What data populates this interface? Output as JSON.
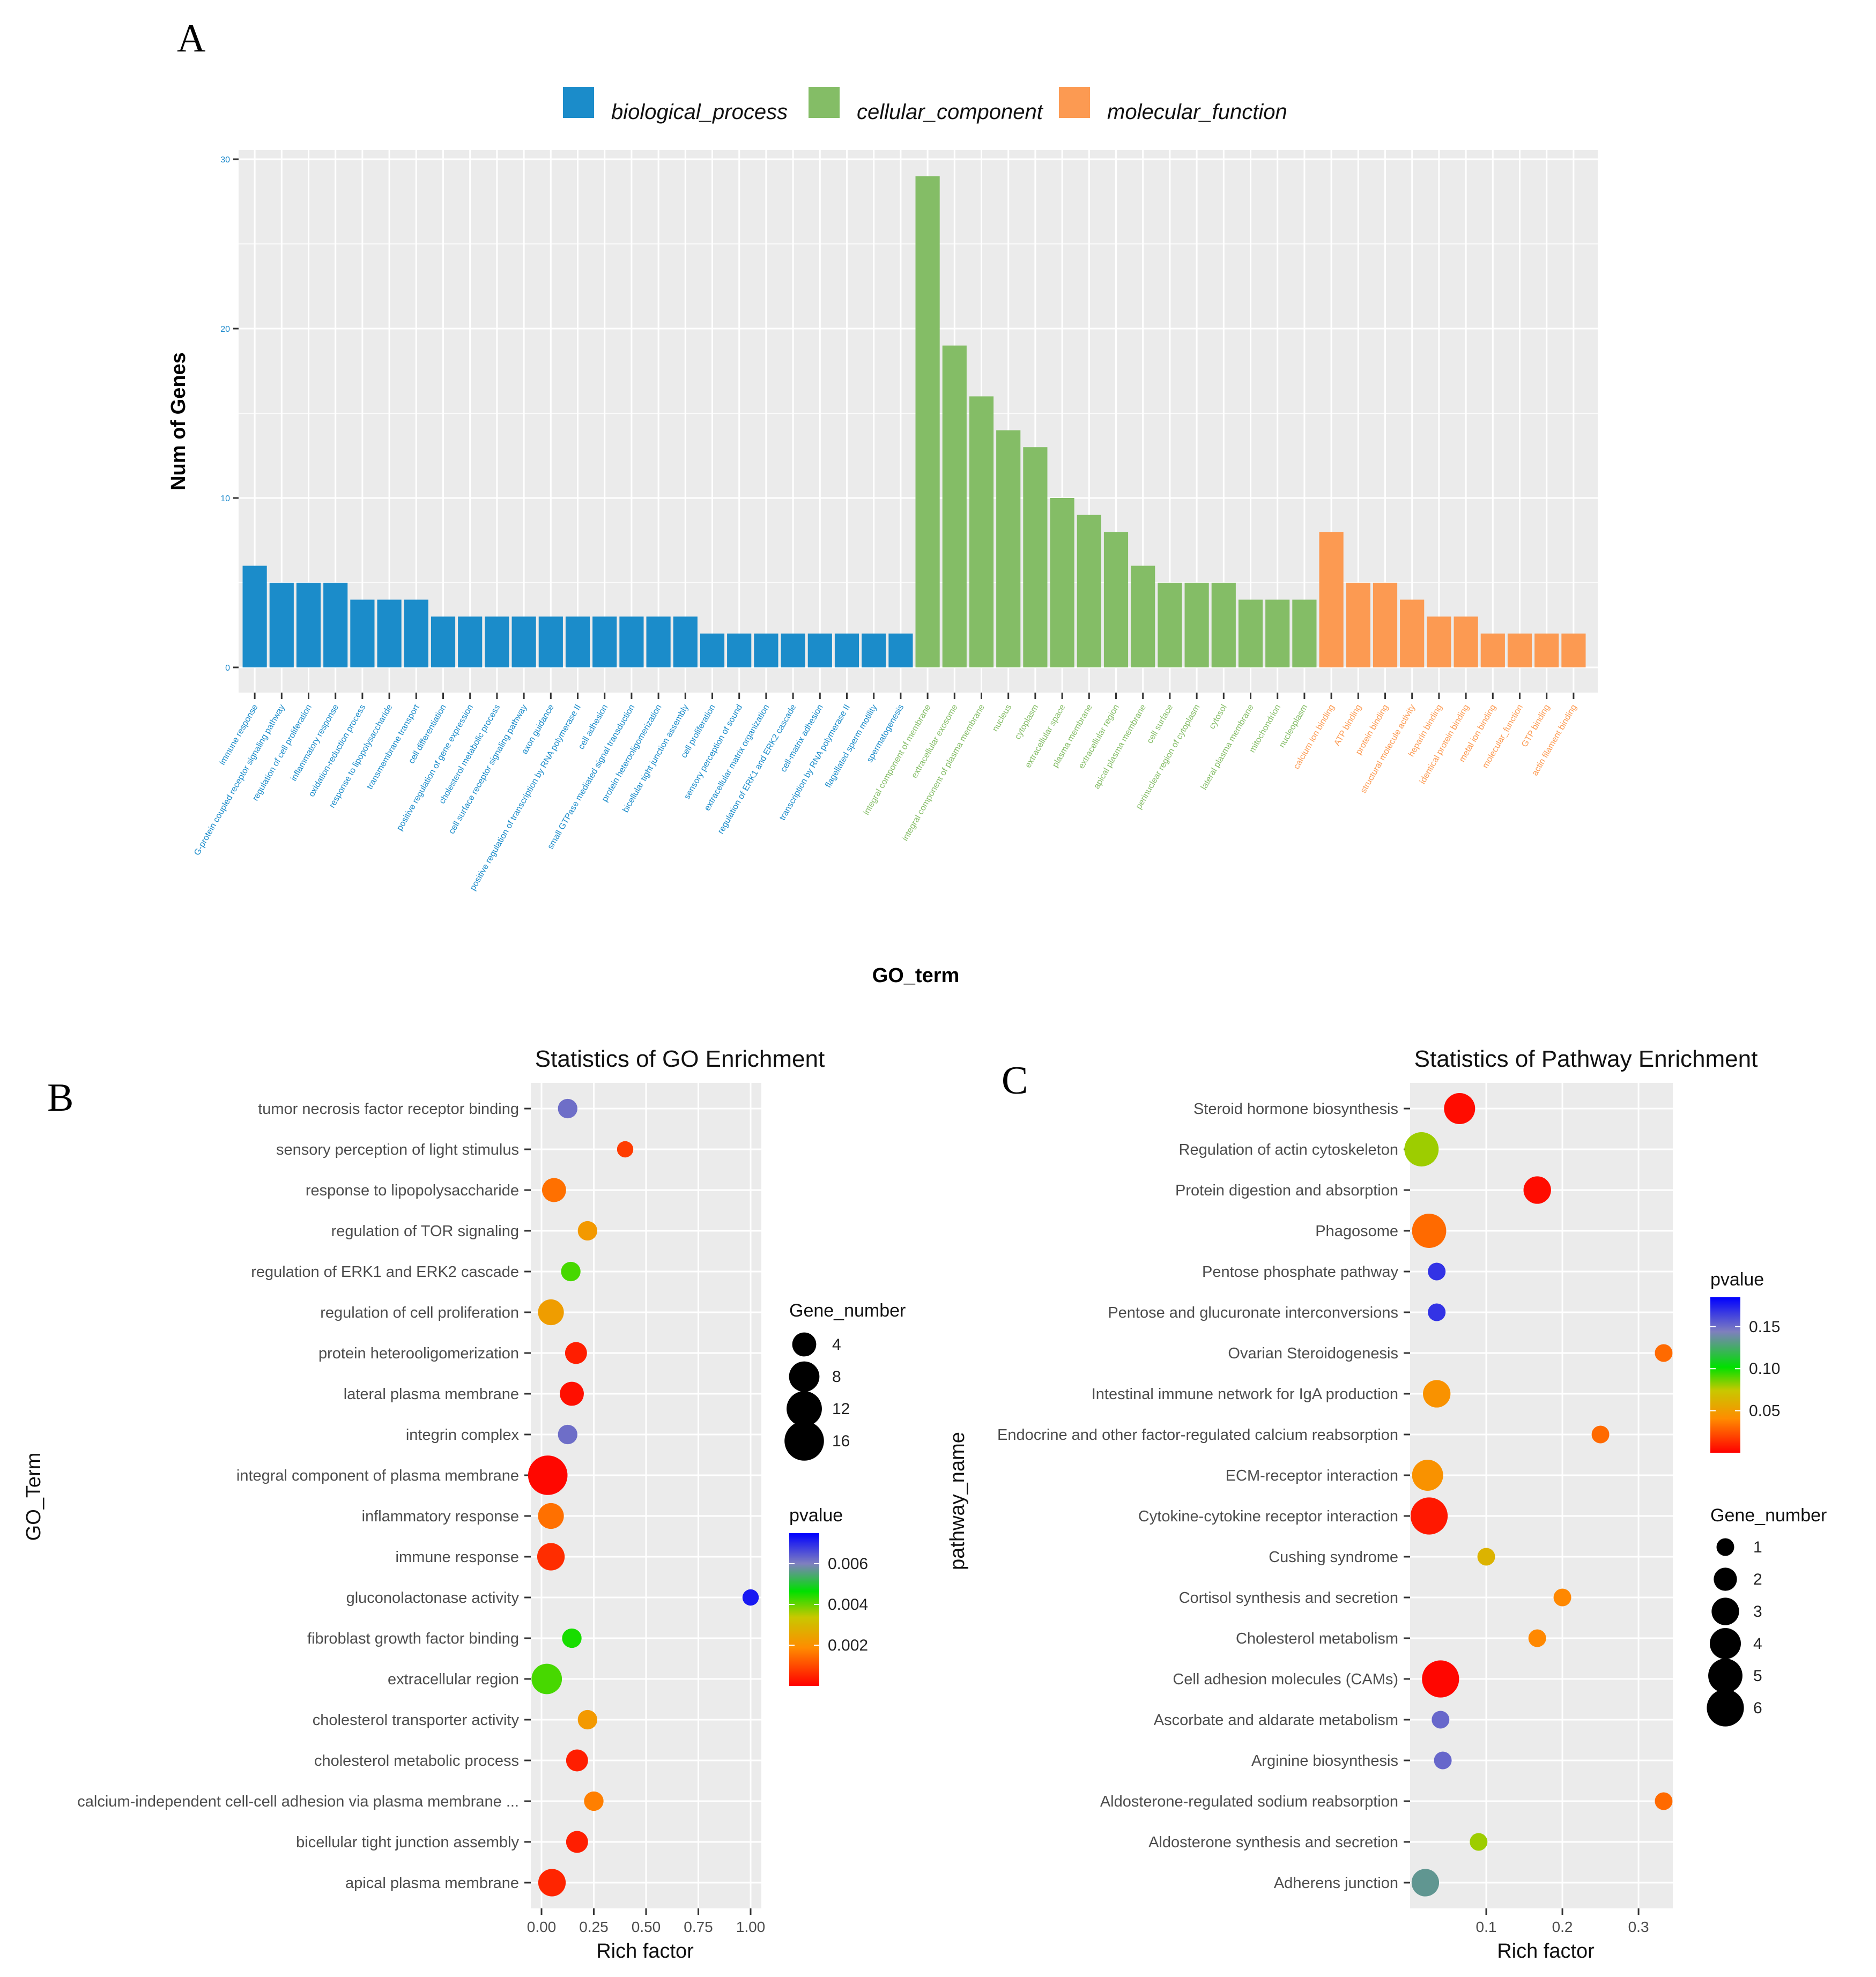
{
  "colors": {
    "biological_process": "#1b8cca",
    "cellular_component": "#84bd66",
    "molecular_function": "#fc9a52",
    "panel_bg": "#ebebeb",
    "grid": "#ffffff"
  },
  "panels": {
    "a": "A",
    "b": "B",
    "c": "C"
  },
  "chart_data": [
    {
      "id": "A",
      "type": "bar",
      "xlabel": "GO_term",
      "ylabel": "Num of Genes",
      "ylim": [
        0,
        30
      ],
      "yticks": [
        0,
        10,
        20,
        30
      ],
      "legend": [
        {
          "key": "biological_process",
          "label": "biological_process"
        },
        {
          "key": "cellular_component",
          "label": "cellular_component"
        },
        {
          "key": "molecular_function",
          "label": "molecular_function"
        }
      ],
      "categories": [
        "immune response",
        "G-protein coupled receptor signaling pathway",
        "regulation of cell proliferation",
        "inflammatory response",
        "oxidation-reduction process",
        "response to lipopolysaccharide",
        "transmembrane transport",
        "cell differentiation",
        "positive regulation of gene expression",
        "cholesterol metabolic process",
        "cell surface receptor signaling pathway",
        "axon guidance",
        "positive regulation of transcription by RNA polymerase II",
        "cell adhesion",
        "small GTPase mediated signal transduction",
        "protein heterooligomerization",
        "bicellular tight junction assembly",
        "cell proliferation",
        "sensory perception of sound",
        "extracellular matrix organization",
        "regulation of ERK1 and ERK2 cascade",
        "cell-matrix adhesion",
        "transcription by RNA polymerase II",
        "flagellated sperm motility",
        "spermatogenesis",
        "integral component of membrane",
        "extracellular exosome",
        "integral component of plasma membrane",
        "nucleus",
        "cytoplasm",
        "extracellular space",
        "plasma membrane",
        "extracellular region",
        "apical plasma membrane",
        "cell surface",
        "perinuclear region of cytoplasm",
        "cytosol",
        "lateral plasma membrane",
        "mitochondrion",
        "nucleoplasm",
        "calcium ion binding",
        "ATP binding",
        "protein binding",
        "structural molecule activity",
        "heparin binding",
        "identical protein binding",
        "metal ion binding",
        "molecular_function",
        "GTP binding",
        "actin filament binding"
      ],
      "values": [
        6,
        5,
        5,
        5,
        4,
        4,
        4,
        3,
        3,
        3,
        3,
        3,
        3,
        3,
        3,
        3,
        3,
        2,
        2,
        2,
        2,
        2,
        2,
        2,
        2,
        29,
        19,
        16,
        14,
        13,
        10,
        9,
        8,
        6,
        5,
        5,
        5,
        4,
        4,
        4,
        8,
        5,
        5,
        4,
        3,
        3,
        2,
        2,
        2,
        2
      ],
      "groups": [
        "biological_process",
        "biological_process",
        "biological_process",
        "biological_process",
        "biological_process",
        "biological_process",
        "biological_process",
        "biological_process",
        "biological_process",
        "biological_process",
        "biological_process",
        "biological_process",
        "biological_process",
        "biological_process",
        "biological_process",
        "biological_process",
        "biological_process",
        "biological_process",
        "biological_process",
        "biological_process",
        "biological_process",
        "biological_process",
        "biological_process",
        "biological_process",
        "biological_process",
        "cellular_component",
        "cellular_component",
        "cellular_component",
        "cellular_component",
        "cellular_component",
        "cellular_component",
        "cellular_component",
        "cellular_component",
        "cellular_component",
        "cellular_component",
        "cellular_component",
        "cellular_component",
        "cellular_component",
        "cellular_component",
        "cellular_component",
        "molecular_function",
        "molecular_function",
        "molecular_function",
        "molecular_function",
        "molecular_function",
        "molecular_function",
        "molecular_function",
        "molecular_function",
        "molecular_function",
        "molecular_function"
      ]
    },
    {
      "id": "B",
      "type": "scatter",
      "title": "Statistics of GO Enrichment",
      "xlabel": "Rich factor",
      "ylabel": "GO_Term",
      "xlim": [
        0,
        1.0
      ],
      "xticks": [
        0.0,
        0.25,
        0.5,
        0.75,
        1.0
      ],
      "xtick_labels": [
        "0.00",
        "0.25",
        "0.50",
        "0.75",
        "1.00"
      ],
      "size_legend": {
        "title": "Gene_number",
        "values": [
          4,
          8,
          12,
          16
        ],
        "labels": [
          "4",
          "8",
          "12",
          "16"
        ]
      },
      "color_legend": {
        "title": "pvalue",
        "range": [
          0,
          0.0075
        ],
        "ticks": [
          0.002,
          0.004,
          0.006
        ],
        "tick_labels": [
          "0.002",
          "0.004",
          "0.006"
        ]
      },
      "points": [
        {
          "term": "tumor necrosis factor receptor binding",
          "x": 0.125,
          "size": 2,
          "pvalue": 0.0062
        },
        {
          "term": "sensory perception of light stimulus",
          "x": 0.4,
          "size": 1,
          "pvalue": 0.0008
        },
        {
          "term": "response to lipopolysaccharide",
          "x": 0.06,
          "size": 4,
          "pvalue": 0.0015
        },
        {
          "term": "regulation of TOR signaling",
          "x": 0.22,
          "size": 2,
          "pvalue": 0.0022
        },
        {
          "term": "regulation of ERK1 and ERK2 cascade",
          "x": 0.14,
          "size": 2,
          "pvalue": 0.0042
        },
        {
          "term": "regulation of cell proliferation",
          "x": 0.045,
          "size": 5,
          "pvalue": 0.0023
        },
        {
          "term": "protein heterooligomerization",
          "x": 0.165,
          "size": 3,
          "pvalue": 0.0004
        },
        {
          "term": "lateral plasma membrane",
          "x": 0.145,
          "size": 4,
          "pvalue": 0.0002
        },
        {
          "term": "integrin complex",
          "x": 0.125,
          "size": 2,
          "pvalue": 0.0062
        },
        {
          "term": "integral component of plasma membrane",
          "x": 0.03,
          "size": 16,
          "pvalue": 0.0001
        },
        {
          "term": "inflammatory response",
          "x": 0.045,
          "size": 5,
          "pvalue": 0.0015
        },
        {
          "term": "immune response",
          "x": 0.045,
          "size": 6,
          "pvalue": 0.0006
        },
        {
          "term": "gluconolactonase activity",
          "x": 1.0,
          "size": 1,
          "pvalue": 0.0072
        },
        {
          "term": "fibroblast growth factor binding",
          "x": 0.145,
          "size": 2,
          "pvalue": 0.0045
        },
        {
          "term": "extracellular region",
          "x": 0.025,
          "size": 8,
          "pvalue": 0.0042
        },
        {
          "term": "cholesterol transporter activity",
          "x": 0.22,
          "size": 2,
          "pvalue": 0.0022
        },
        {
          "term": "cholesterol metabolic process",
          "x": 0.17,
          "size": 3,
          "pvalue": 0.0004
        },
        {
          "term": "calcium-independent cell-cell adhesion via plasma membrane ...",
          "x": 0.25,
          "size": 2,
          "pvalue": 0.0017
        },
        {
          "term": "bicellular tight junction assembly",
          "x": 0.17,
          "size": 3,
          "pvalue": 0.0004
        },
        {
          "term": "apical plasma membrane",
          "x": 0.05,
          "size": 6,
          "pvalue": 0.0005
        }
      ]
    },
    {
      "id": "C",
      "type": "scatter",
      "title": "Statistics of Pathway Enrichment",
      "xlabel": "Rich factor",
      "ylabel": "pathway_name",
      "xlim": [
        0.0,
        0.345
      ],
      "xticks": [
        0.1,
        0.2,
        0.3
      ],
      "xtick_labels": [
        "0.1",
        "0.2",
        "0.3"
      ],
      "size_legend": {
        "title": "Gene_number",
        "values": [
          1,
          2,
          3,
          4,
          5,
          6
        ],
        "labels": [
          "1",
          "2",
          "3",
          "4",
          "5",
          "6"
        ]
      },
      "color_legend": {
        "title": "pvalue",
        "range": [
          0,
          0.185
        ],
        "ticks": [
          0.05,
          0.1,
          0.15
        ],
        "tick_labels": [
          "0.05",
          "0.10",
          "0.15"
        ]
      },
      "points": [
        {
          "term": "Steroid hormone biosynthesis",
          "x": 0.065,
          "size": 4,
          "pvalue": 0.004
        },
        {
          "term": "Regulation of actin cytoskeleton",
          "x": 0.015,
          "size": 5,
          "pvalue": 0.09
        },
        {
          "term": "Protein digestion and absorption",
          "x": 0.167,
          "size": 3,
          "pvalue": 0.004
        },
        {
          "term": "Phagosome",
          "x": 0.025,
          "size": 5,
          "pvalue": 0.035
        },
        {
          "term": "Pentose phosphate pathway",
          "x": 0.035,
          "size": 1,
          "pvalue": 0.17
        },
        {
          "term": "Pentose and glucuronate interconversions",
          "x": 0.035,
          "size": 1,
          "pvalue": 0.17
        },
        {
          "term": "Ovarian Steroidogenesis",
          "x": 0.333,
          "size": 1,
          "pvalue": 0.035
        },
        {
          "term": "Intestinal immune network for IgA production",
          "x": 0.035,
          "size": 3,
          "pvalue": 0.05
        },
        {
          "term": "Endocrine and other factor-regulated calcium reabsorption",
          "x": 0.25,
          "size": 1,
          "pvalue": 0.035
        },
        {
          "term": "ECM-receptor interaction",
          "x": 0.023,
          "size": 4,
          "pvalue": 0.05
        },
        {
          "term": "Cytokine-cytokine receptor interaction",
          "x": 0.025,
          "size": 6,
          "pvalue": 0.008
        },
        {
          "term": "Cushing syndrome",
          "x": 0.1,
          "size": 1,
          "pvalue": 0.07
        },
        {
          "term": "Cortisol synthesis and secretion",
          "x": 0.2,
          "size": 1,
          "pvalue": 0.045
        },
        {
          "term": "Cholesterol metabolism",
          "x": 0.167,
          "size": 1,
          "pvalue": 0.045
        },
        {
          "term": "Cell adhesion molecules (CAMs)",
          "x": 0.04,
          "size": 6,
          "pvalue": 0.002
        },
        {
          "term": "Ascorbate and aldarate metabolism",
          "x": 0.04,
          "size": 1,
          "pvalue": 0.155
        },
        {
          "term": "Arginine biosynthesis",
          "x": 0.043,
          "size": 1,
          "pvalue": 0.155
        },
        {
          "term": "Aldosterone-regulated sodium reabsorption",
          "x": 0.333,
          "size": 1,
          "pvalue": 0.035
        },
        {
          "term": "Aldosterone synthesis and secretion",
          "x": 0.09,
          "size": 1,
          "pvalue": 0.09
        },
        {
          "term": "Adherens junction",
          "x": 0.02,
          "size": 3,
          "pvalue": 0.14
        }
      ]
    }
  ]
}
